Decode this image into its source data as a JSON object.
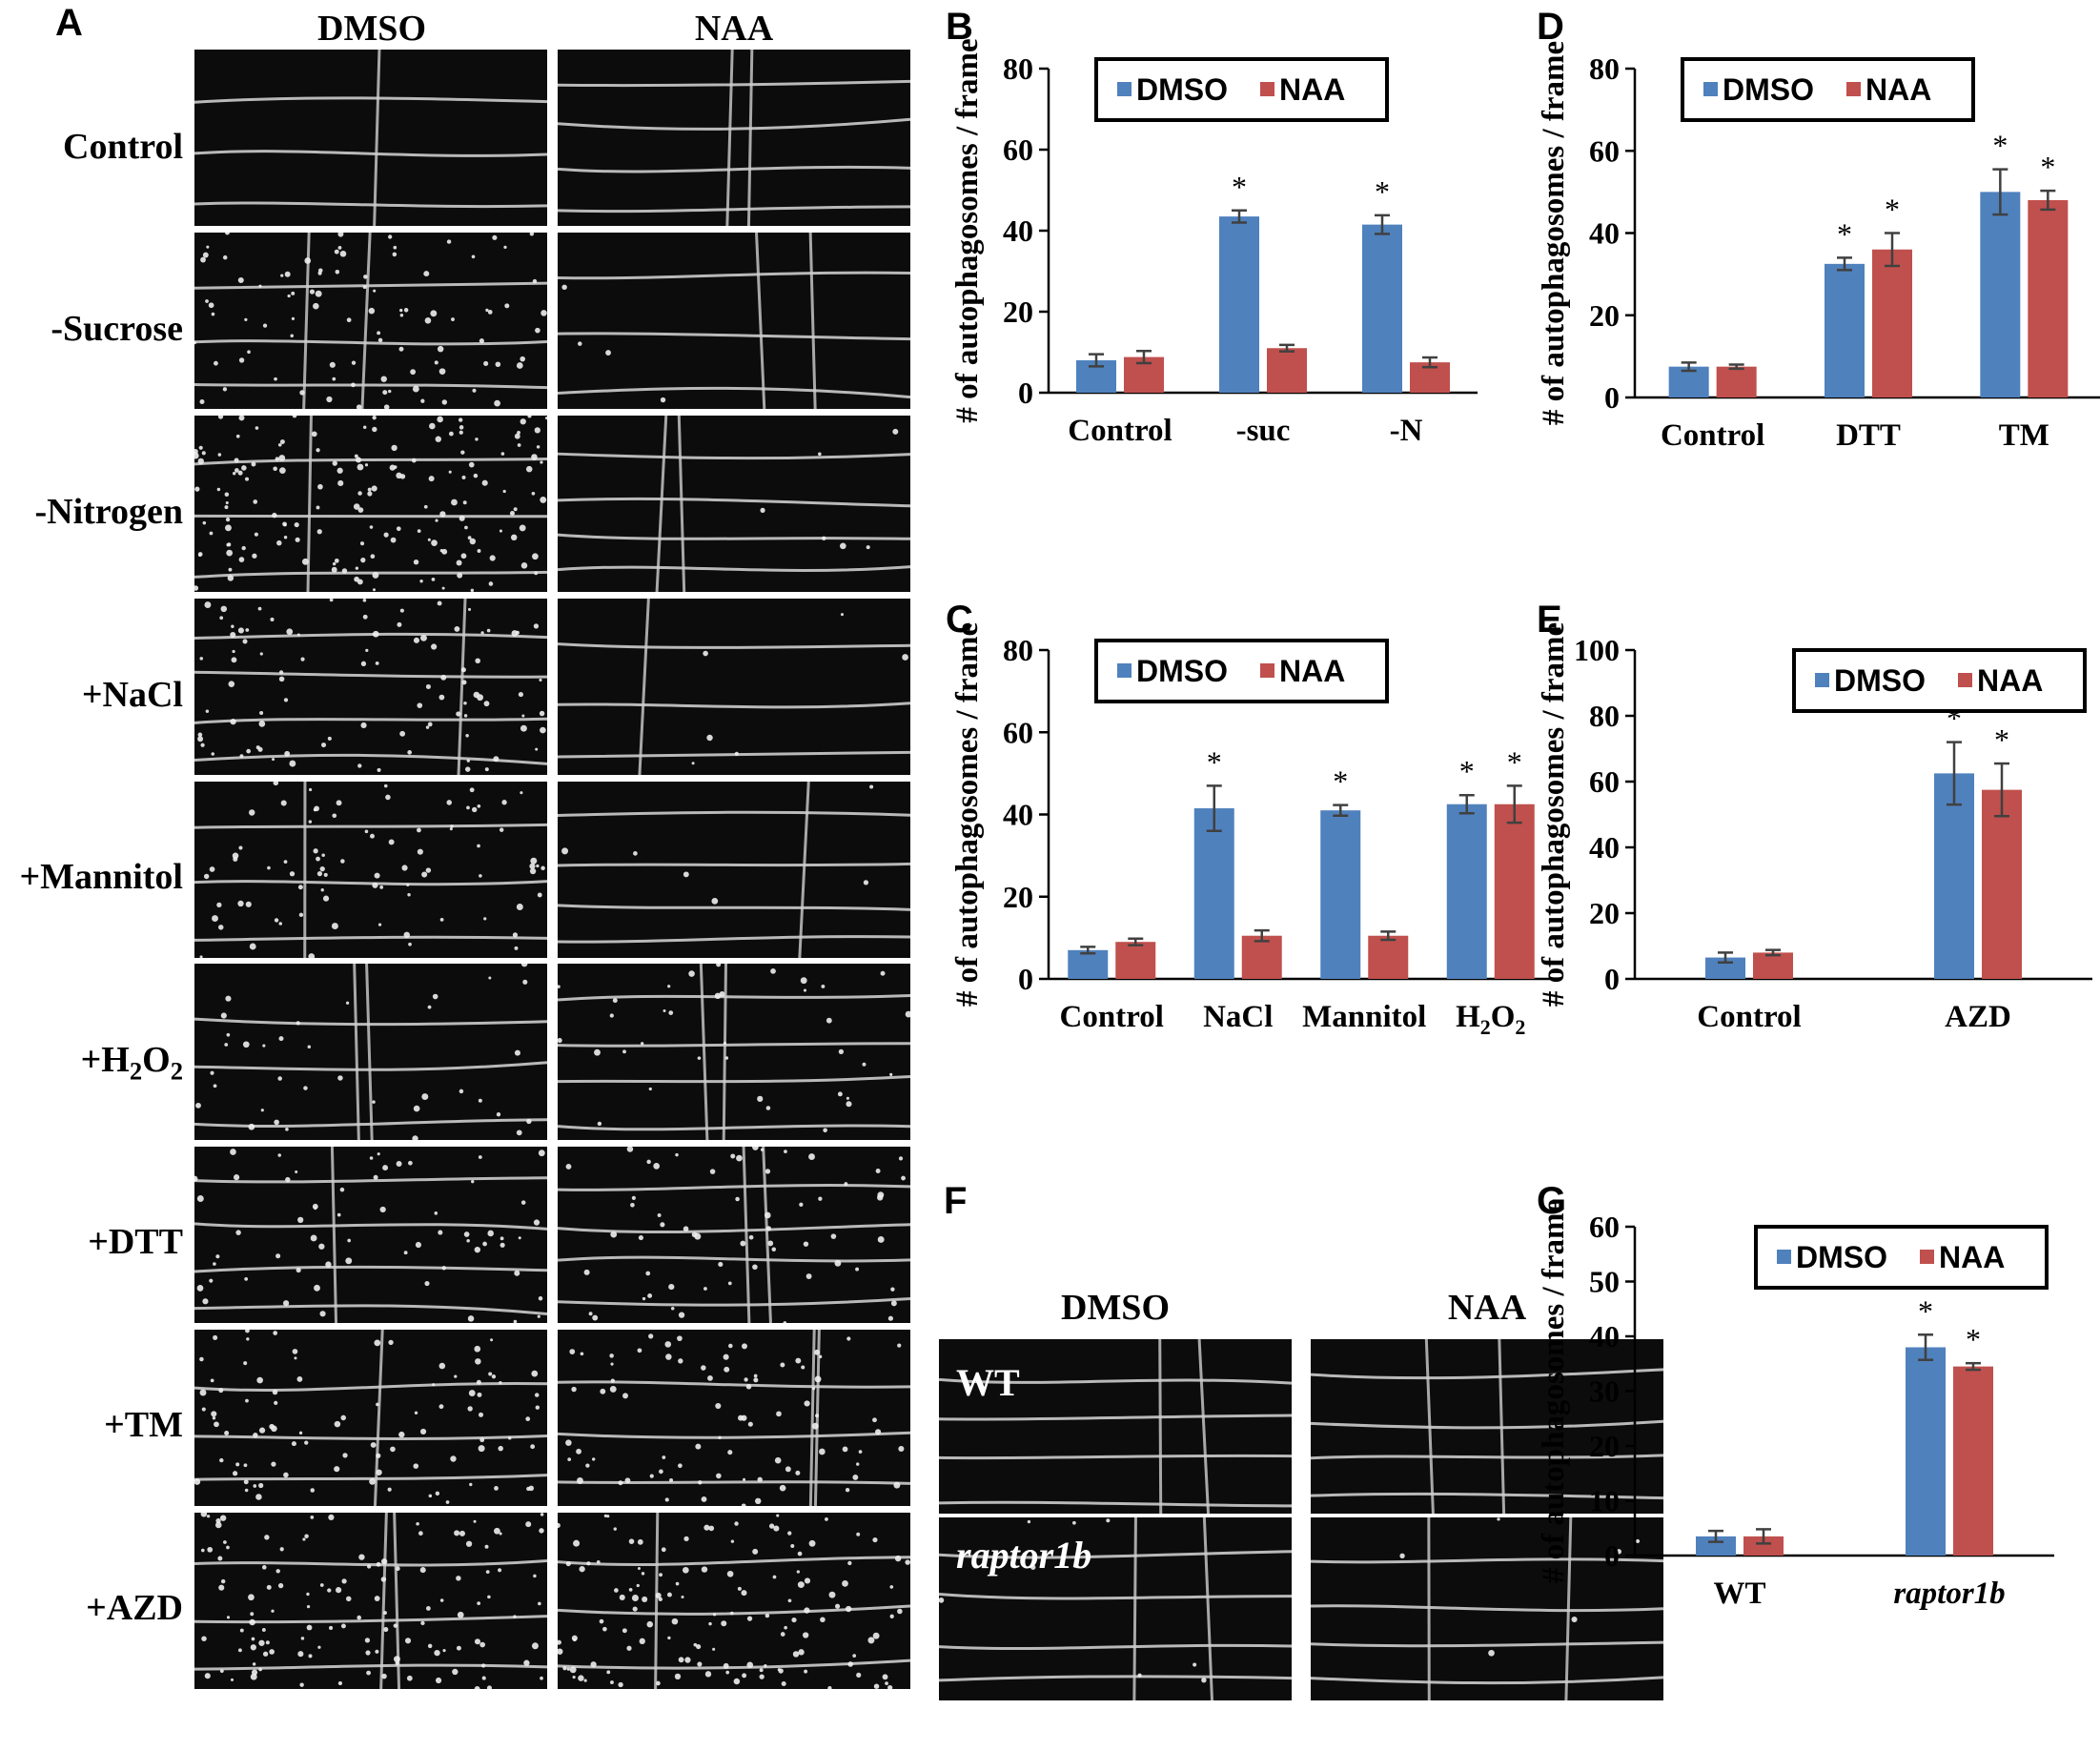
{
  "panels": {
    "A": "A",
    "B": "B",
    "C": "C",
    "D": "D",
    "E": "E",
    "F": "F",
    "G": "G"
  },
  "panel_a": {
    "columns": [
      "DMSO",
      "NAA"
    ],
    "rows": [
      "Control",
      "-Sucrose",
      "-Nitrogen",
      "+NaCl",
      "+Mannitol",
      "+H2O2",
      "+DTT",
      "+TM",
      "+AZD"
    ]
  },
  "panel_f": {
    "columns": [
      "DMSO",
      "NAA"
    ],
    "rows": [
      "WT",
      "raptor1b"
    ]
  },
  "colors": {
    "dmso": "#4F81BD",
    "naa": "#C0504D",
    "error": "#404040"
  },
  "chart_data": [
    {
      "panel": "B",
      "type": "bar",
      "categories": [
        "Control",
        "-suc",
        "-N"
      ],
      "series": [
        {
          "name": "DMSO",
          "values": [
            8,
            43.5,
            41.5
          ],
          "errors": [
            1.5,
            1.5,
            2.3
          ]
        },
        {
          "name": "NAA",
          "values": [
            8.8,
            11,
            7.5
          ],
          "errors": [
            1.5,
            0.8,
            1.2
          ]
        }
      ],
      "significant": [
        [
          false,
          true,
          true
        ],
        [
          false,
          false,
          false
        ]
      ],
      "ylabel": "# of autophagosomes / frame",
      "ylim": [
        0,
        80
      ],
      "yticks": [
        0,
        20,
        40,
        60,
        80
      ],
      "legend": "top"
    },
    {
      "panel": "C",
      "type": "bar",
      "categories": [
        "Control",
        "NaCl",
        "Mannitol",
        "H2O2"
      ],
      "series": [
        {
          "name": "DMSO",
          "values": [
            7,
            41.5,
            41,
            42.5
          ],
          "errors": [
            0.8,
            5.5,
            1.3,
            2.2
          ]
        },
        {
          "name": "NAA",
          "values": [
            9,
            10.5,
            10.5,
            42.5
          ],
          "errors": [
            0.8,
            1.3,
            1.0,
            4.5
          ]
        }
      ],
      "significant": [
        [
          false,
          true,
          true,
          true
        ],
        [
          false,
          false,
          false,
          true
        ]
      ],
      "ylabel": "# of autophagosomes / frame",
      "ylim": [
        0,
        80
      ],
      "yticks": [
        0,
        20,
        40,
        60,
        80
      ],
      "legend": "top"
    },
    {
      "panel": "D",
      "type": "bar",
      "categories": [
        "Control",
        "DTT",
        "TM"
      ],
      "series": [
        {
          "name": "DMSO",
          "values": [
            7.5,
            32.5,
            50
          ],
          "errors": [
            1.0,
            1.5,
            5.5
          ]
        },
        {
          "name": "NAA",
          "values": [
            7.5,
            36,
            48
          ],
          "errors": [
            0.5,
            4.0,
            2.3
          ]
        }
      ],
      "significant": [
        [
          false,
          true,
          true
        ],
        [
          false,
          true,
          true
        ]
      ],
      "ylabel": "# of autophagosomes / frame",
      "ylim": [
        0,
        80
      ],
      "yticks": [
        0,
        20,
        40,
        60,
        80
      ],
      "legend": "top"
    },
    {
      "panel": "E",
      "type": "bar",
      "categories": [
        "Control",
        "AZD"
      ],
      "series": [
        {
          "name": "DMSO",
          "values": [
            6.5,
            62.5
          ],
          "errors": [
            1.5,
            9.5
          ]
        },
        {
          "name": "NAA",
          "values": [
            8,
            57.5
          ],
          "errors": [
            0.8,
            8.0
          ]
        }
      ],
      "significant": [
        [
          false,
          true
        ],
        [
          false,
          true
        ]
      ],
      "ylabel": "# of autophagosomes / frame",
      "ylim": [
        0,
        100
      ],
      "yticks": [
        0,
        20,
        40,
        60,
        80,
        100
      ],
      "legend": "top-right"
    },
    {
      "panel": "G",
      "type": "bar",
      "categories": [
        "WT",
        "raptor1b"
      ],
      "series": [
        {
          "name": "DMSO",
          "values": [
            3.5,
            38
          ],
          "errors": [
            1.0,
            2.3
          ]
        },
        {
          "name": "NAA",
          "values": [
            3.5,
            34.5
          ],
          "errors": [
            1.3,
            0.6
          ]
        }
      ],
      "significant": [
        [
          false,
          true
        ],
        [
          false,
          true
        ]
      ],
      "ylabel": "# of autophagosomes / frame",
      "ylim": [
        0,
        60
      ],
      "yticks": [
        0,
        10,
        20,
        30,
        40,
        50,
        60
      ],
      "legend": "top-right"
    }
  ]
}
